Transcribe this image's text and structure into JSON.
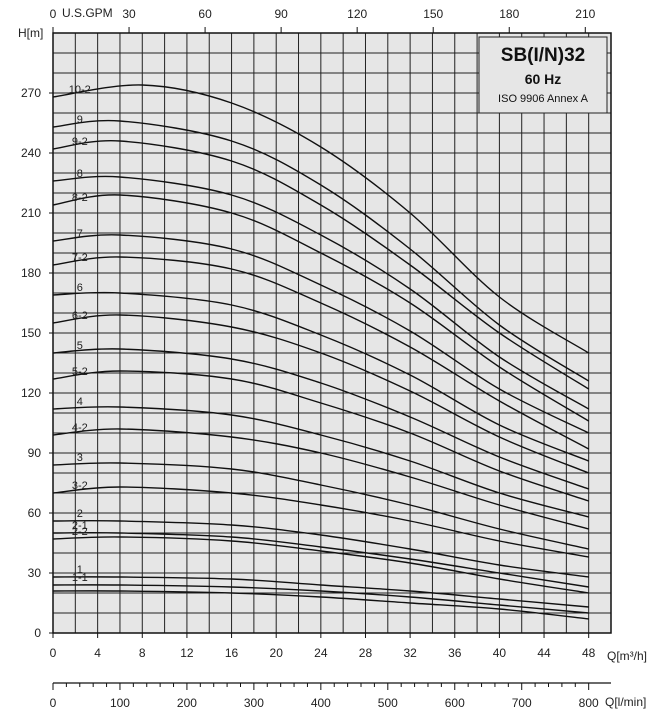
{
  "chart_data": {
    "type": "line",
    "title": "SB(I/N)32",
    "subtitle": "60 Hz",
    "note": "ISO 9906 Annex A",
    "ylabel": "H[m]",
    "xlabel": "Q[m³/h]",
    "x2label": "Q[l/min]",
    "toplabel": "U.S.GPM",
    "xlim": [
      0,
      48
    ],
    "ylim": [
      0,
      280
    ],
    "x_ticks": [
      0,
      4,
      8,
      12,
      16,
      20,
      24,
      28,
      32,
      36,
      40,
      44,
      48
    ],
    "y_ticks": [
      0,
      30,
      60,
      90,
      120,
      150,
      180,
      210,
      240,
      270
    ],
    "gpm_ticks": [
      0,
      30,
      60,
      90,
      120,
      150,
      180,
      210
    ],
    "lmin_ticks": [
      0,
      100,
      200,
      300,
      400,
      500,
      600,
      700,
      800
    ],
    "grid": true,
    "series": [
      {
        "name": "10-2",
        "values": [
          [
            0,
            268
          ],
          [
            8,
            274
          ],
          [
            16,
            265
          ],
          [
            24,
            243
          ],
          [
            32,
            210
          ],
          [
            40,
            168
          ],
          [
            48,
            140
          ]
        ]
      },
      {
        "name": "9",
        "values": [
          [
            0,
            253
          ],
          [
            6,
            256
          ],
          [
            16,
            246
          ],
          [
            24,
            224
          ],
          [
            32,
            192
          ],
          [
            40,
            154
          ],
          [
            48,
            126
          ]
        ]
      },
      {
        "name": "9-2",
        "values": [
          [
            0,
            242
          ],
          [
            6,
            246
          ],
          [
            16,
            236
          ],
          [
            24,
            214
          ],
          [
            32,
            184
          ],
          [
            40,
            150
          ],
          [
            48,
            122
          ]
        ]
      },
      {
        "name": "8",
        "values": [
          [
            0,
            226
          ],
          [
            6,
            228
          ],
          [
            16,
            219
          ],
          [
            24,
            199
          ],
          [
            32,
            172
          ],
          [
            40,
            138
          ],
          [
            48,
            112
          ]
        ]
      },
      {
        "name": "8-2",
        "values": [
          [
            0,
            214
          ],
          [
            6,
            219
          ],
          [
            16,
            210
          ],
          [
            24,
            190
          ],
          [
            32,
            165
          ],
          [
            40,
            133
          ],
          [
            48,
            106
          ]
        ]
      },
      {
        "name": "7",
        "values": [
          [
            0,
            196
          ],
          [
            6,
            199
          ],
          [
            16,
            192
          ],
          [
            24,
            174
          ],
          [
            32,
            151
          ],
          [
            40,
            122
          ],
          [
            48,
            100
          ]
        ]
      },
      {
        "name": "7-2",
        "values": [
          [
            0,
            184
          ],
          [
            6,
            188
          ],
          [
            16,
            182
          ],
          [
            24,
            165
          ],
          [
            32,
            143
          ],
          [
            40,
            116
          ],
          [
            48,
            92
          ]
        ]
      },
      {
        "name": "6",
        "values": [
          [
            0,
            169
          ],
          [
            6,
            170
          ],
          [
            16,
            164
          ],
          [
            24,
            149
          ],
          [
            32,
            129
          ],
          [
            40,
            104
          ],
          [
            48,
            86
          ]
        ]
      },
      {
        "name": "6-2",
        "values": [
          [
            0,
            155
          ],
          [
            6,
            159
          ],
          [
            16,
            153
          ],
          [
            24,
            140
          ],
          [
            32,
            121
          ],
          [
            40,
            98
          ],
          [
            48,
            80
          ]
        ]
      },
      {
        "name": "5",
        "values": [
          [
            0,
            140
          ],
          [
            6,
            142
          ],
          [
            16,
            137
          ],
          [
            24,
            125
          ],
          [
            32,
            108
          ],
          [
            40,
            88
          ],
          [
            48,
            72
          ]
        ]
      },
      {
        "name": "5-2",
        "values": [
          [
            0,
            127
          ],
          [
            6,
            131
          ],
          [
            16,
            127
          ],
          [
            24,
            115
          ],
          [
            32,
            100
          ],
          [
            40,
            81
          ],
          [
            48,
            66
          ]
        ]
      },
      {
        "name": "4",
        "values": [
          [
            0,
            112
          ],
          [
            6,
            113
          ],
          [
            16,
            109
          ],
          [
            24,
            99
          ],
          [
            32,
            86
          ],
          [
            40,
            70
          ],
          [
            48,
            58
          ]
        ]
      },
      {
        "name": "4-2",
        "values": [
          [
            0,
            99
          ],
          [
            6,
            102
          ],
          [
            16,
            98
          ],
          [
            24,
            90
          ],
          [
            32,
            78
          ],
          [
            40,
            64
          ],
          [
            48,
            52
          ]
        ]
      },
      {
        "name": "3",
        "values": [
          [
            0,
            84
          ],
          [
            6,
            85
          ],
          [
            16,
            82
          ],
          [
            24,
            74
          ],
          [
            32,
            64
          ],
          [
            40,
            52
          ],
          [
            48,
            42
          ]
        ]
      },
      {
        "name": "3-2",
        "values": [
          [
            0,
            70
          ],
          [
            6,
            73
          ],
          [
            16,
            70
          ],
          [
            24,
            64
          ],
          [
            32,
            56
          ],
          [
            40,
            46
          ],
          [
            48,
            38
          ]
        ]
      },
      {
        "name": "2",
        "values": [
          [
            0,
            56
          ],
          [
            6,
            56
          ],
          [
            16,
            54
          ],
          [
            24,
            49
          ],
          [
            32,
            42
          ],
          [
            40,
            34
          ],
          [
            48,
            28
          ]
        ]
      },
      {
        "name": "2-1",
        "values": [
          [
            0,
            50
          ],
          [
            6,
            50
          ],
          [
            16,
            48
          ],
          [
            24,
            43
          ],
          [
            32,
            37
          ],
          [
            40,
            30
          ],
          [
            48,
            23
          ]
        ]
      },
      {
        "name": "2-2",
        "values": [
          [
            0,
            47
          ],
          [
            6,
            48
          ],
          [
            16,
            46
          ],
          [
            24,
            41
          ],
          [
            32,
            35
          ],
          [
            40,
            27
          ],
          [
            48,
            20
          ]
        ]
      },
      {
        "name": "1",
        "values": [
          [
            0,
            28
          ],
          [
            6,
            28
          ],
          [
            16,
            27
          ],
          [
            24,
            24
          ],
          [
            32,
            21
          ],
          [
            40,
            17
          ],
          [
            48,
            13
          ]
        ]
      },
      {
        "name": "1-1",
        "values": [
          [
            0,
            24
          ],
          [
            6,
            24
          ],
          [
            16,
            23
          ],
          [
            24,
            21
          ],
          [
            32,
            18
          ],
          [
            40,
            14
          ],
          [
            48,
            10
          ]
        ]
      },
      {
        "name": "",
        "values": [
          [
            0,
            21
          ],
          [
            6,
            21
          ],
          [
            16,
            20
          ],
          [
            24,
            18
          ],
          [
            32,
            15
          ],
          [
            40,
            12
          ],
          [
            48,
            7
          ]
        ]
      }
    ]
  }
}
